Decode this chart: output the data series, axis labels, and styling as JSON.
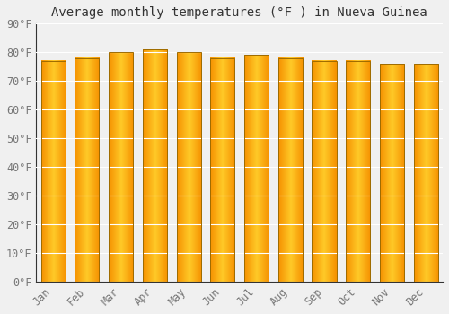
{
  "title": "Average monthly temperatures (°F ) in Nueva Guinea",
  "months": [
    "Jan",
    "Feb",
    "Mar",
    "Apr",
    "May",
    "Jun",
    "Jul",
    "Aug",
    "Sep",
    "Oct",
    "Nov",
    "Dec"
  ],
  "values": [
    77,
    78,
    80,
    81,
    80,
    78,
    79,
    78,
    77,
    77,
    76,
    76
  ],
  "ylim": [
    0,
    90
  ],
  "yticks": [
    0,
    10,
    20,
    30,
    40,
    50,
    60,
    70,
    80,
    90
  ],
  "ytick_labels": [
    "0°F",
    "10°F",
    "20°F",
    "30°F",
    "40°F",
    "50°F",
    "60°F",
    "70°F",
    "80°F",
    "90°F"
  ],
  "bar_color_center": "#FFCA28",
  "bar_color_edge": "#F59000",
  "bar_outline_color": "#9E6B00",
  "background_color": "#f0f0f0",
  "grid_color": "#ffffff",
  "title_fontsize": 10,
  "tick_fontsize": 8.5,
  "font_family": "monospace",
  "bar_width": 0.72
}
